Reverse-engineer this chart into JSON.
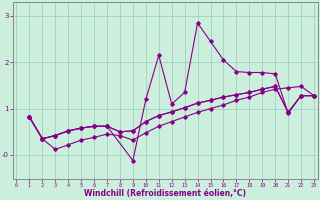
{
  "xlabel": "Windchill (Refroidissement éolien,°C)",
  "bg_color": "#cceedd",
  "grid_color": "#99ccbb",
  "line_color": "#880088",
  "xlim": [
    -0.3,
    23.3
  ],
  "ylim": [
    -0.52,
    3.3
  ],
  "ytick_vals": [
    0,
    1,
    2,
    3
  ],
  "ytick_labels": [
    "-0",
    "1",
    "2",
    "3"
  ],
  "xticks": [
    0,
    1,
    2,
    3,
    4,
    5,
    6,
    7,
    8,
    9,
    10,
    11,
    12,
    13,
    14,
    15,
    16,
    17,
    18,
    19,
    20,
    21,
    22,
    23
  ],
  "line1_x": [
    1,
    2,
    3,
    4,
    5,
    6,
    7,
    9,
    10,
    11,
    12,
    13,
    14,
    15,
    16,
    17,
    18,
    19,
    20,
    21,
    22,
    23
  ],
  "line1_y": [
    0.82,
    0.35,
    0.42,
    0.52,
    0.58,
    0.62,
    0.62,
    -0.12,
    1.2,
    2.15,
    1.1,
    1.35,
    2.85,
    2.45,
    2.05,
    1.8,
    1.78,
    1.78,
    1.75,
    0.9,
    1.28,
    1.28
  ],
  "line2_x": [
    1,
    2,
    3,
    4,
    5,
    6,
    7,
    8,
    9,
    10,
    11,
    12,
    13,
    14,
    15,
    16,
    17,
    18,
    19,
    20,
    21,
    22,
    23
  ],
  "line2_y": [
    0.82,
    0.35,
    0.42,
    0.52,
    0.58,
    0.62,
    0.62,
    0.5,
    0.52,
    0.72,
    0.85,
    0.93,
    1.02,
    1.12,
    1.18,
    1.25,
    1.3,
    1.35,
    1.42,
    1.48,
    0.92,
    1.28,
    1.28
  ],
  "line3_x": [
    1,
    2,
    3,
    4,
    5,
    6,
    7,
    8,
    9,
    10,
    11,
    12,
    13,
    14,
    15,
    16,
    17,
    18,
    19,
    20,
    21,
    22,
    23
  ],
  "line3_y": [
    0.82,
    0.35,
    0.42,
    0.52,
    0.58,
    0.62,
    0.62,
    0.5,
    0.52,
    0.72,
    0.85,
    0.93,
    1.02,
    1.12,
    1.18,
    1.25,
    1.3,
    1.35,
    1.42,
    1.48,
    0.92,
    1.28,
    1.28
  ],
  "line4_x": [
    1,
    2,
    3,
    4,
    5,
    6,
    7,
    8,
    9,
    10,
    11,
    12,
    13,
    14,
    15,
    16,
    17,
    18,
    19,
    20,
    21,
    22,
    23
  ],
  "line4_y": [
    0.82,
    0.35,
    0.12,
    0.22,
    0.32,
    0.38,
    0.45,
    0.42,
    0.32,
    0.48,
    0.62,
    0.72,
    0.82,
    0.92,
    1.0,
    1.08,
    1.18,
    1.25,
    1.35,
    1.42,
    1.45,
    1.48,
    1.28
  ]
}
